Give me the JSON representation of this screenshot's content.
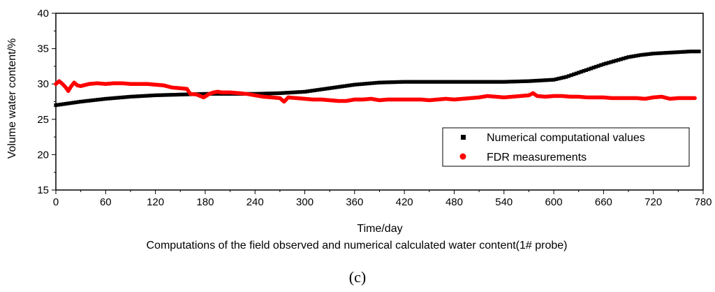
{
  "chart_data": {
    "type": "scatter",
    "title": "",
    "xlabel": "Time/day",
    "ylabel": "Volume water content/%",
    "xlim": [
      0,
      780
    ],
    "ylim": [
      15,
      40
    ],
    "xticks": [
      0,
      60,
      120,
      180,
      240,
      300,
      360,
      420,
      480,
      540,
      600,
      660,
      720,
      780
    ],
    "yticks": [
      15,
      20,
      25,
      30,
      35,
      40
    ],
    "legend_position": "right",
    "series": [
      {
        "name": "Numerical computational values",
        "marker": "square",
        "color": "#000000",
        "x": [
          0,
          30,
          60,
          90,
          120,
          150,
          180,
          210,
          240,
          270,
          300,
          330,
          360,
          390,
          420,
          450,
          480,
          510,
          540,
          570,
          600,
          615,
          630,
          645,
          660,
          675,
          690,
          705,
          720,
          735,
          750,
          765,
          775
        ],
        "y": [
          27.0,
          27.5,
          27.9,
          28.2,
          28.4,
          28.5,
          28.6,
          28.6,
          28.6,
          28.7,
          28.9,
          29.4,
          29.9,
          30.2,
          30.3,
          30.3,
          30.3,
          30.3,
          30.3,
          30.4,
          30.6,
          31.0,
          31.6,
          32.2,
          32.8,
          33.3,
          33.8,
          34.1,
          34.3,
          34.4,
          34.5,
          34.6,
          34.6
        ]
      },
      {
        "name": "FDR measurements",
        "marker": "circle",
        "color": "#ff0000",
        "x": [
          0,
          4,
          8,
          12,
          15,
          18,
          22,
          26,
          30,
          40,
          50,
          60,
          70,
          80,
          90,
          100,
          110,
          120,
          130,
          140,
          150,
          158,
          162,
          170,
          178,
          185,
          190,
          195,
          200,
          210,
          220,
          230,
          240,
          250,
          260,
          270,
          275,
          280,
          290,
          300,
          310,
          320,
          330,
          340,
          350,
          360,
          370,
          380,
          390,
          400,
          410,
          420,
          430,
          440,
          450,
          460,
          470,
          480,
          490,
          500,
          510,
          520,
          530,
          540,
          550,
          560,
          570,
          575,
          580,
          590,
          600,
          610,
          620,
          630,
          640,
          650,
          660,
          670,
          680,
          690,
          700,
          710,
          720,
          730,
          740,
          750,
          760,
          770
        ],
        "y": [
          30.0,
          30.4,
          30.0,
          29.5,
          29.0,
          29.6,
          30.2,
          29.8,
          29.7,
          30.0,
          30.1,
          30.0,
          30.1,
          30.1,
          30.0,
          30.0,
          30.0,
          29.9,
          29.8,
          29.5,
          29.4,
          29.3,
          28.6,
          28.5,
          28.1,
          28.6,
          28.8,
          28.9,
          28.8,
          28.8,
          28.7,
          28.6,
          28.4,
          28.2,
          28.1,
          28.0,
          27.5,
          28.1,
          28.0,
          27.9,
          27.8,
          27.8,
          27.7,
          27.6,
          27.6,
          27.8,
          27.8,
          27.9,
          27.7,
          27.8,
          27.8,
          27.8,
          27.8,
          27.8,
          27.7,
          27.8,
          27.9,
          27.8,
          27.9,
          28.0,
          28.1,
          28.3,
          28.2,
          28.1,
          28.2,
          28.3,
          28.4,
          28.7,
          28.3,
          28.2,
          28.3,
          28.3,
          28.2,
          28.2,
          28.1,
          28.1,
          28.1,
          28.0,
          28.0,
          28.0,
          28.0,
          27.9,
          28.1,
          28.2,
          27.9,
          28.0,
          28.0,
          28.0
        ]
      }
    ]
  },
  "caption": "Computations of the field observed and numerical calculated water content(1# probe)",
  "panel_label": "(c)"
}
